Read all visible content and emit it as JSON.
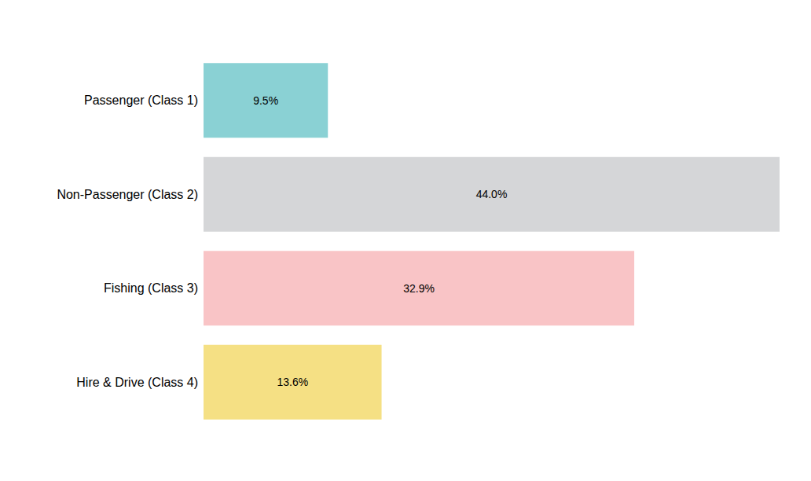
{
  "chart_data": {
    "type": "bar",
    "orientation": "horizontal",
    "categories": [
      "Passenger (Class 1)",
      "Non-Passenger (Class 2)",
      "Fishing (Class 3)",
      "Hire & Drive (Class 4)"
    ],
    "values": [
      9.5,
      44.0,
      32.9,
      13.6
    ],
    "value_labels": [
      "9.5%",
      "44.0%",
      "32.9%",
      "13.6%"
    ],
    "colors": [
      "#8ad1d4",
      "#d5d6d8",
      "#f9c4c6",
      "#f5e084"
    ],
    "xlim": [
      0,
      44
    ],
    "data_labels": true,
    "tick_labels": "y",
    "grid": false
  }
}
